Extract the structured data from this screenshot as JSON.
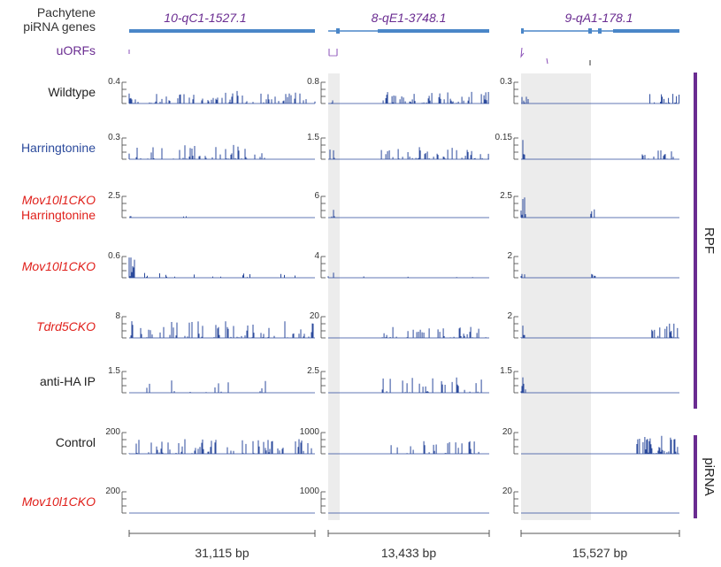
{
  "header": {
    "title_line1": "Pachytene",
    "title_line2": "piRNA genes",
    "uorfs_label": "uORFs"
  },
  "genes": [
    {
      "name": "10-qC1-1527.1",
      "scale": "31,115 bp"
    },
    {
      "name": "8-qE1-3748.1",
      "scale": "13,433 bp"
    },
    {
      "name": "9-qA1-178.1",
      "scale": "15,527 bp"
    }
  ],
  "tracks": [
    {
      "label": "Wildtype",
      "italic": false,
      "color": "#222222",
      "maxes": [
        "0.4",
        "0.8",
        "0.3"
      ]
    },
    {
      "label": "Harringtonine",
      "italic": false,
      "color": "#2b4a9c",
      "maxes": [
        "0.3",
        "1.5",
        "0.15"
      ]
    },
    {
      "label": "Mov10l1CKO",
      "label2": "Harringtonine",
      "italic": true,
      "color": "#e0201b",
      "maxes": [
        "2.5",
        "6",
        "2.5"
      ]
    },
    {
      "label": "Mov10l1CKO",
      "italic": true,
      "color": "#e0201b",
      "maxes": [
        "0.6",
        "4",
        "2"
      ]
    },
    {
      "label": "Tdrd5CKO",
      "italic": true,
      "color": "#e0201b",
      "maxes": [
        "8",
        "20",
        "2"
      ]
    },
    {
      "label": "anti-HA IP",
      "italic": false,
      "color": "#222222",
      "maxes": [
        "1.5",
        "2.5",
        "1.5"
      ]
    },
    {
      "label": "Control",
      "italic": false,
      "color": "#222222",
      "maxes": [
        "200",
        "1000",
        "20"
      ]
    },
    {
      "label": "Mov10l1CKO",
      "italic": true,
      "color": "#e0201b",
      "maxes": [
        "200",
        "1000",
        "20"
      ]
    }
  ],
  "groups": {
    "rpf": "RPF",
    "pirna": "piRNA",
    "color": "#6a2c91"
  },
  "colors": {
    "gene_bar": "#4a86c8",
    "gene_name": "#6a2c91",
    "signal": "#2b4a9c",
    "highlight": "#ececec"
  }
}
